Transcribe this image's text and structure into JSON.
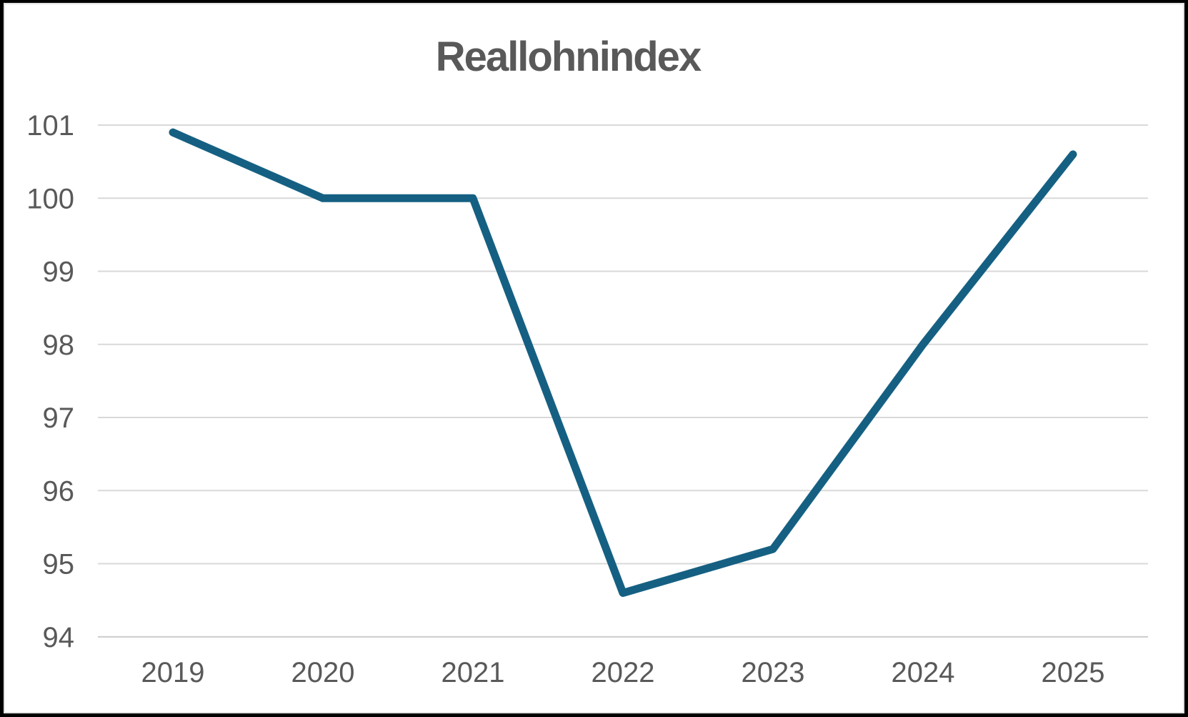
{
  "chart_data": {
    "type": "line",
    "title": "Reallohnindex",
    "categories": [
      "2019",
      "2020",
      "2021",
      "2022",
      "2023",
      "2024",
      "2025"
    ],
    "series": [
      {
        "name": "Reallohnindex",
        "values": [
          100.9,
          100.0,
          100.0,
          94.6,
          95.2,
          98.0,
          100.6
        ]
      }
    ],
    "xlabel": "",
    "ylabel": "",
    "y_ticks": [
      94,
      95,
      96,
      97,
      98,
      99,
      100,
      101
    ],
    "ylim": [
      94,
      101
    ],
    "grid": "horizontal",
    "legend": "none",
    "colors": {
      "line": "#156082",
      "labels": "#595959",
      "title": "#595959",
      "gridline": "#d9d9d9",
      "axis_line": "#cccccc",
      "background": "#ffffff",
      "frame": "#000000"
    }
  }
}
